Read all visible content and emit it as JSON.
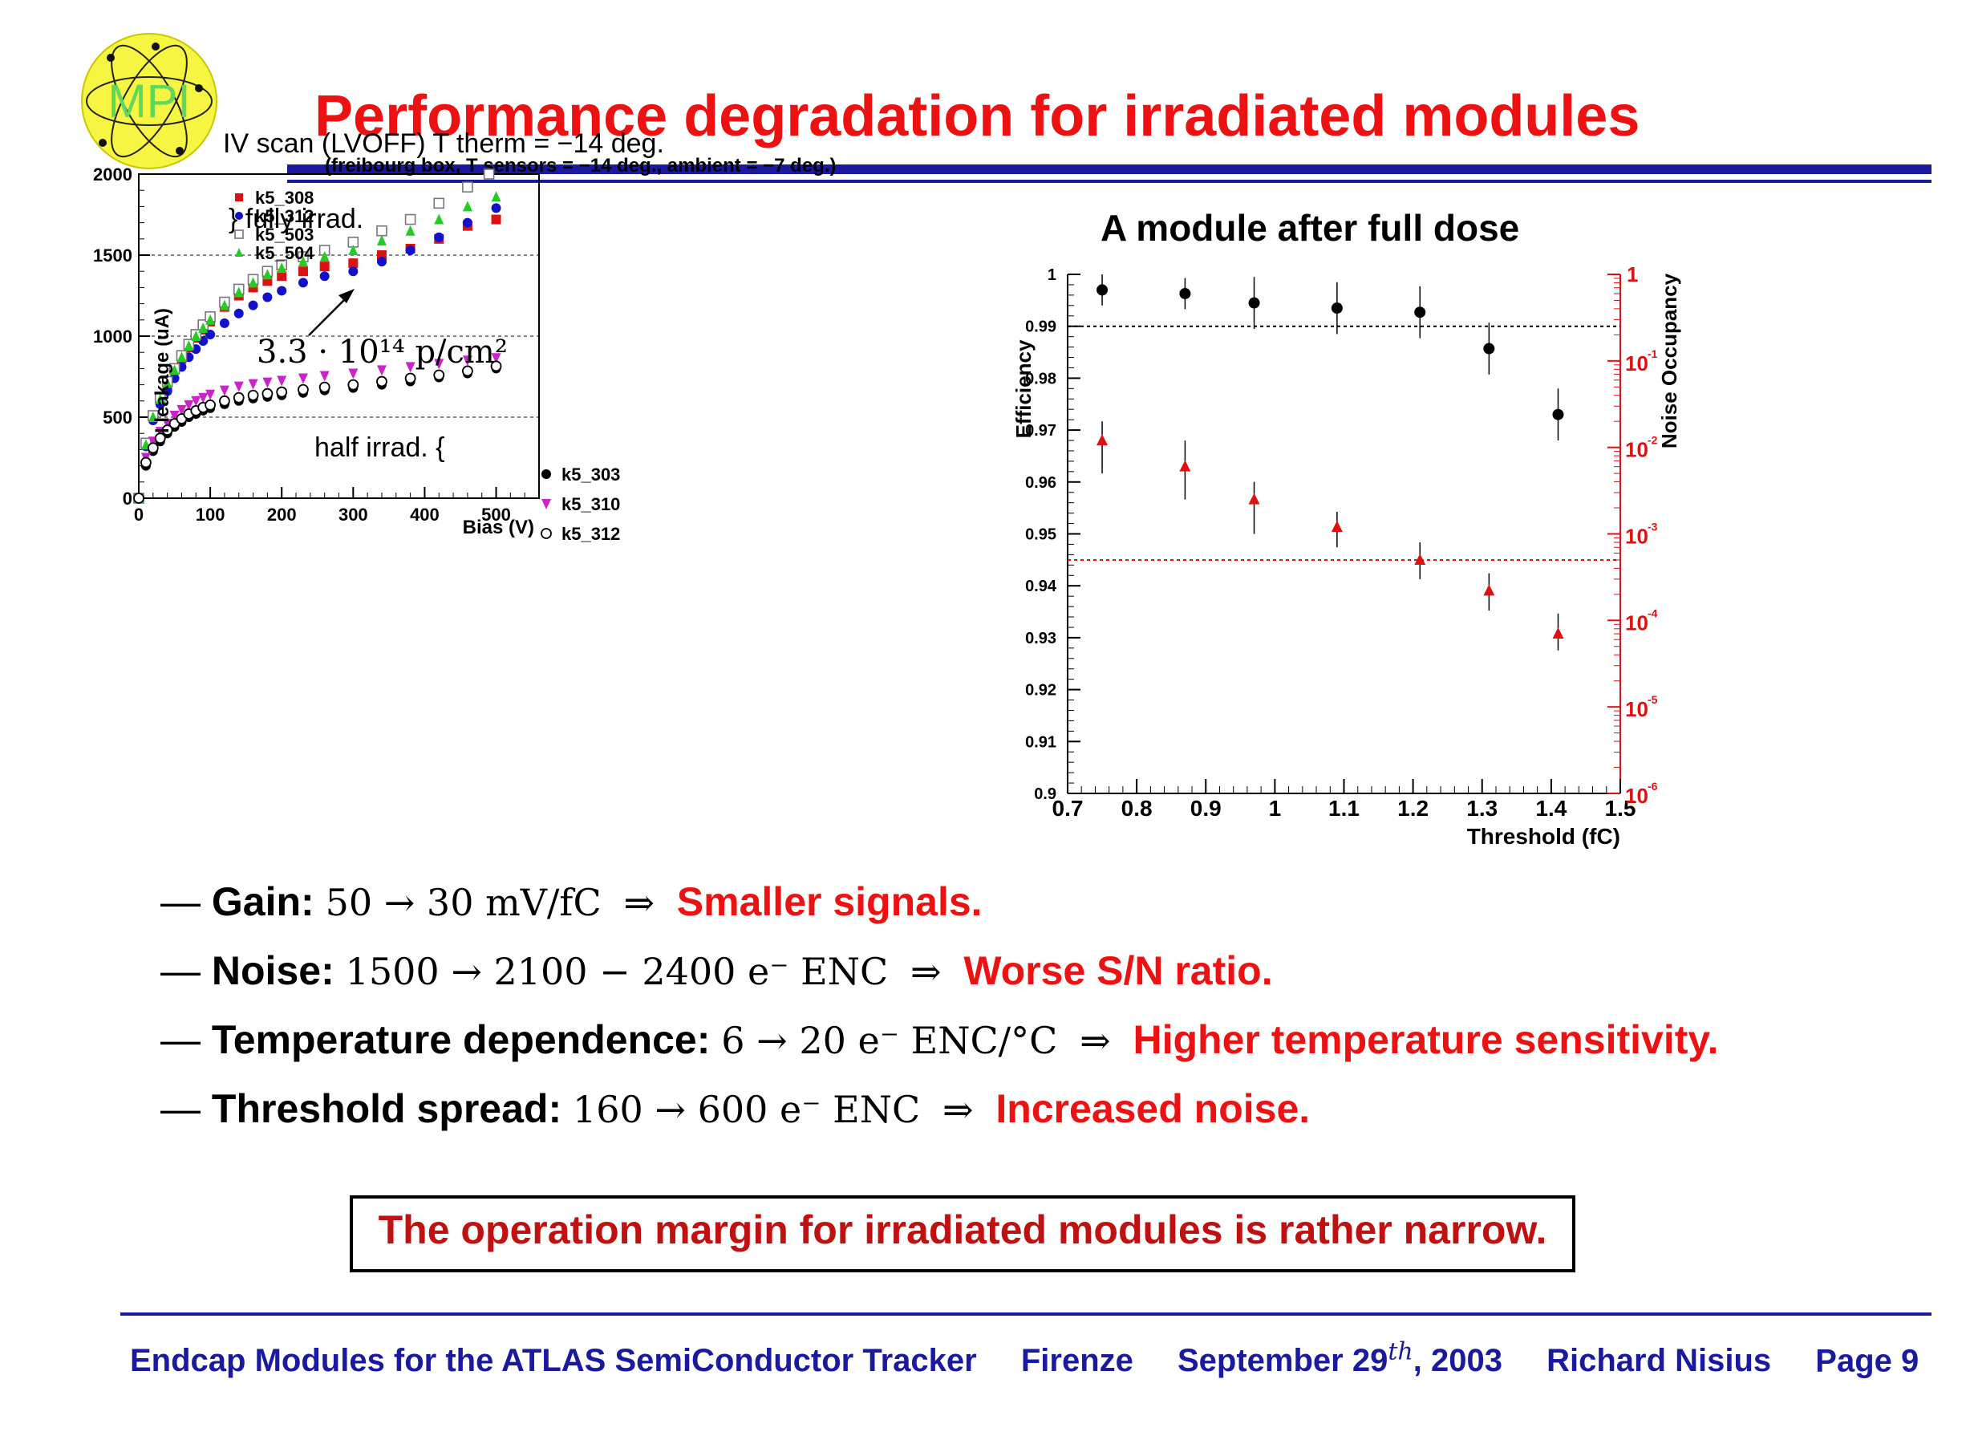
{
  "title": "Performance degradation for irradiated modules",
  "logo_text": "MPI",
  "left_figure": {
    "title": "IV scan (LVOFF) T therm = −14 deg.",
    "subtitle": "(freibourg box, T sensors = −14 deg., ambient = −7 deg.)",
    "ylabel": "I leakage (uA)",
    "xlabel": "Bias (V)",
    "fully_label": "} fully irrad.",
    "half_label": "half irrad.  {",
    "annotation": "3.3 · 10¹⁴ p/cm²",
    "legend_full": [
      "k5_308",
      "k5_312",
      "k5_503",
      "k5_504"
    ],
    "legend_half": [
      "k5_303",
      "k5_310",
      "k5_312"
    ],
    "colors": {
      "k5_308": "#dd1111",
      "k5_312_full": "#1111cc",
      "k5_503": "#777777",
      "k5_504": "#22cc22",
      "k5_303": "#000000",
      "k5_310": "#cc22cc",
      "k5_312_half": "#000000"
    }
  },
  "right_figure": {
    "title": "A module after full dose",
    "ylabel_left": "Efficiency",
    "ylabel_right": "Noise Occupancy",
    "xlabel": "Threshold (fC)"
  },
  "chart_data": [
    {
      "type": "scatter",
      "title": "IV scan (LVOFF) T therm = −14 deg.",
      "xlabel": "Bias (V)",
      "ylabel": "I leakage (uA)",
      "xlim": [
        0,
        560
      ],
      "ylim": [
        0,
        2000
      ],
      "xticks": [
        0,
        100,
        200,
        300,
        400,
        500
      ],
      "yticks": [
        0,
        500,
        1000,
        1500,
        2000
      ],
      "hlines": [
        500,
        1000,
        1500
      ],
      "legend_position": "top-left",
      "series": [
        {
          "name": "k5_308",
          "marker": "square-filled",
          "x": [
            0,
            10,
            20,
            30,
            40,
            50,
            60,
            70,
            80,
            90,
            100,
            120,
            140,
            160,
            180,
            200,
            230,
            260,
            300,
            340,
            380,
            420,
            460,
            500
          ],
          "y": [
            0,
            330,
            500,
            610,
            700,
            790,
            860,
            930,
            990,
            1040,
            1090,
            1180,
            1250,
            1300,
            1340,
            1370,
            1400,
            1430,
            1450,
            1500,
            1540,
            1600,
            1680,
            1720
          ]
        },
        {
          "name": "k5_312",
          "marker": "circle-filled",
          "x": [
            0,
            10,
            20,
            30,
            40,
            50,
            60,
            70,
            80,
            90,
            100,
            120,
            140,
            160,
            180,
            200,
            230,
            260,
            300,
            340,
            380,
            420,
            460,
            500
          ],
          "y": [
            0,
            320,
            480,
            580,
            660,
            740,
            810,
            870,
            920,
            970,
            1010,
            1080,
            1140,
            1190,
            1240,
            1280,
            1330,
            1370,
            1400,
            1460,
            1530,
            1610,
            1700,
            1790
          ]
        },
        {
          "name": "k5_503",
          "marker": "square-open",
          "x": [
            0,
            10,
            20,
            30,
            40,
            50,
            60,
            70,
            80,
            90,
            100,
            120,
            140,
            160,
            180,
            200,
            230,
            260,
            300,
            340,
            380,
            420,
            460,
            490
          ],
          "y": [
            0,
            340,
            510,
            620,
            720,
            800,
            880,
            950,
            1010,
            1070,
            1120,
            1210,
            1290,
            1350,
            1400,
            1440,
            1490,
            1530,
            1580,
            1650,
            1720,
            1820,
            1920,
            2000
          ]
        },
        {
          "name": "k5_504",
          "marker": "triangle-up",
          "x": [
            0,
            10,
            20,
            30,
            40,
            50,
            60,
            70,
            80,
            90,
            100,
            120,
            140,
            160,
            180,
            200,
            230,
            260,
            300,
            340,
            380,
            420,
            460,
            500
          ],
          "y": [
            0,
            330,
            500,
            610,
            710,
            790,
            870,
            940,
            1000,
            1050,
            1100,
            1190,
            1270,
            1330,
            1380,
            1420,
            1460,
            1490,
            1530,
            1590,
            1650,
            1720,
            1800,
            1860
          ]
        },
        {
          "name": "k5_303",
          "marker": "circle-filled",
          "x": [
            0,
            10,
            20,
            30,
            40,
            50,
            60,
            70,
            80,
            90,
            100,
            120,
            140,
            160,
            180,
            200,
            230,
            260,
            300,
            340,
            380,
            420,
            460,
            500
          ],
          "y": [
            0,
            200,
            290,
            350,
            400,
            440,
            470,
            500,
            520,
            540,
            555,
            580,
            600,
            615,
            625,
            635,
            650,
            665,
            680,
            700,
            720,
            745,
            770,
            800
          ]
        },
        {
          "name": "k5_310",
          "marker": "triangle-down",
          "x": [
            0,
            10,
            20,
            30,
            40,
            50,
            60,
            70,
            80,
            90,
            100,
            120,
            140,
            160,
            180,
            200,
            230,
            260,
            300,
            340,
            380,
            420,
            460,
            500
          ],
          "y": [
            0,
            250,
            350,
            410,
            460,
            510,
            545,
            575,
            600,
            620,
            640,
            665,
            690,
            705,
            715,
            725,
            740,
            755,
            770,
            790,
            810,
            830,
            850,
            865
          ]
        },
        {
          "name": "k5_312",
          "marker": "circle-open",
          "x": [
            0,
            10,
            20,
            30,
            40,
            50,
            60,
            70,
            80,
            90,
            100,
            120,
            140,
            160,
            180,
            200,
            230,
            260,
            300,
            340,
            380,
            420,
            460,
            500
          ],
          "y": [
            0,
            220,
            310,
            370,
            420,
            460,
            490,
            520,
            540,
            560,
            575,
            600,
            620,
            635,
            645,
            655,
            670,
            685,
            700,
            720,
            740,
            760,
            785,
            815
          ]
        }
      ]
    },
    {
      "type": "scatter",
      "title": "A module after full dose",
      "xlabel": "Threshold (fC)",
      "ylabel": "Efficiency",
      "y2label": "Noise Occupancy",
      "xlim": [
        0.7,
        1.5
      ],
      "ylim": [
        0.9,
        1.0
      ],
      "y2lim": [
        1e-06,
        1
      ],
      "y2scale": "log",
      "xticks": [
        0.7,
        0.8,
        0.9,
        1,
        1.1,
        1.2,
        1.3,
        1.4,
        1.5
      ],
      "yticks": [
        0.9,
        0.91,
        0.92,
        0.93,
        0.94,
        0.95,
        0.96,
        0.97,
        0.98,
        0.99,
        1
      ],
      "y2ticks": [
        "1",
        "10-1",
        "10-2",
        "10-3",
        "10-4",
        "10-5",
        "10-6"
      ],
      "hline_efficiency": 0.99,
      "hline_occupancy": 0.0005,
      "series": [
        {
          "name": "Efficiency",
          "axis": "left",
          "color": "#000000",
          "x": [
            0.75,
            0.87,
            0.97,
            1.09,
            1.21,
            1.31,
            1.41
          ],
          "y": [
            0.997,
            0.9963,
            0.9945,
            0.9935,
            0.9927,
            0.9857,
            0.973
          ],
          "err": [
            0.003,
            0.003,
            0.005,
            0.005,
            0.005,
            0.005,
            0.005
          ]
        },
        {
          "name": "Noise Occupancy",
          "axis": "right",
          "color": "#dd1111",
          "x": [
            0.75,
            0.87,
            0.97,
            1.09,
            1.21,
            1.31,
            1.41
          ],
          "y": [
            0.012,
            0.006,
            0.0025,
            0.0012,
            0.0005,
            0.00022,
            7e-05
          ],
          "err_lo": [
            0.005,
            0.0025,
            0.001,
            0.0007,
            0.0003,
            0.00013,
            4.5e-05
          ],
          "err_hi": [
            0.02,
            0.012,
            0.004,
            0.0018,
            0.0008,
            0.00035,
            0.00012
          ]
        }
      ]
    }
  ],
  "bullets": [
    {
      "dash": "—",
      "label": "Gain:",
      "math": "50 → 30 mV/fC",
      "arrow": "⇒",
      "result": "Smaller signals."
    },
    {
      "dash": "—",
      "label": "Noise:",
      "math": "1500 → 2100 − 2400 e⁻ ENC",
      "arrow": "⇒",
      "result": "Worse S/N ratio."
    },
    {
      "dash": "—",
      "label": "Temperature dependence:",
      "math": "6 → 20 e⁻ ENC/°C",
      "arrow": "⇒",
      "result": "Higher temperature sensitivity."
    },
    {
      "dash": "—",
      "label": "Threshold spread:",
      "math": "160 → 600 e⁻ ENC",
      "arrow": "⇒",
      "result": "Increased noise."
    }
  ],
  "conclusion": "The operation margin for irradiated modules is rather narrow.",
  "footer": {
    "talk": "Endcap Modules for the ATLAS SemiConductor Tracker",
    "place": "Firenze",
    "date_pre": "September 29",
    "date_sup": "th",
    "date_post": ", 2003",
    "author": "Richard Nisius",
    "page": "Page 9"
  }
}
